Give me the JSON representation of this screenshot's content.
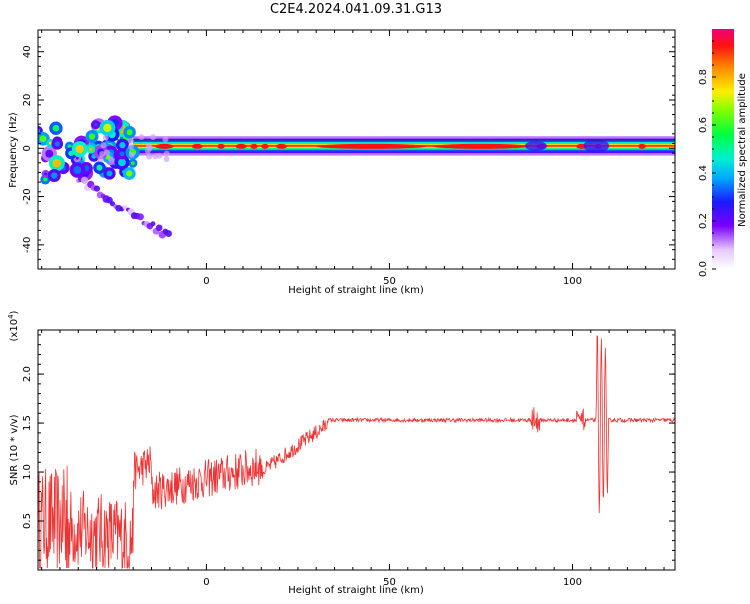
{
  "title": "C2E4.2024.041.09.31.G13",
  "chart_data": [
    {
      "type": "heatmap",
      "xlabel": "Height of straight line (km)",
      "ylabel": "Frequency (Hz)",
      "xlim": [
        -46,
        128
      ],
      "ylim": [
        -50,
        49
      ],
      "xticks": [
        0,
        50,
        100
      ],
      "yticks": [
        -40,
        -20,
        0,
        20,
        40
      ],
      "colorbar": {
        "label": "Normalized spectral amplitude",
        "range": [
          0,
          1
        ],
        "ticks": [
          "0.0",
          "0.2",
          "0.4",
          "0.6",
          "0.8"
        ]
      }
    },
    {
      "type": "line",
      "xlabel": "Height of straight line (km)",
      "ylabel": "SNR (10 * v/v)",
      "ylabel_multiplier": "(x10",
      "ylabel_exponent": "4",
      "ylabel_close": ")",
      "xlim": [
        -46,
        128
      ],
      "ylim": [
        0,
        2.45
      ],
      "xticks": [
        0,
        50,
        100
      ],
      "yticks": [
        "0.5",
        "1.0",
        "1.5",
        "2.0"
      ],
      "line_color": "#ee3333"
    }
  ]
}
